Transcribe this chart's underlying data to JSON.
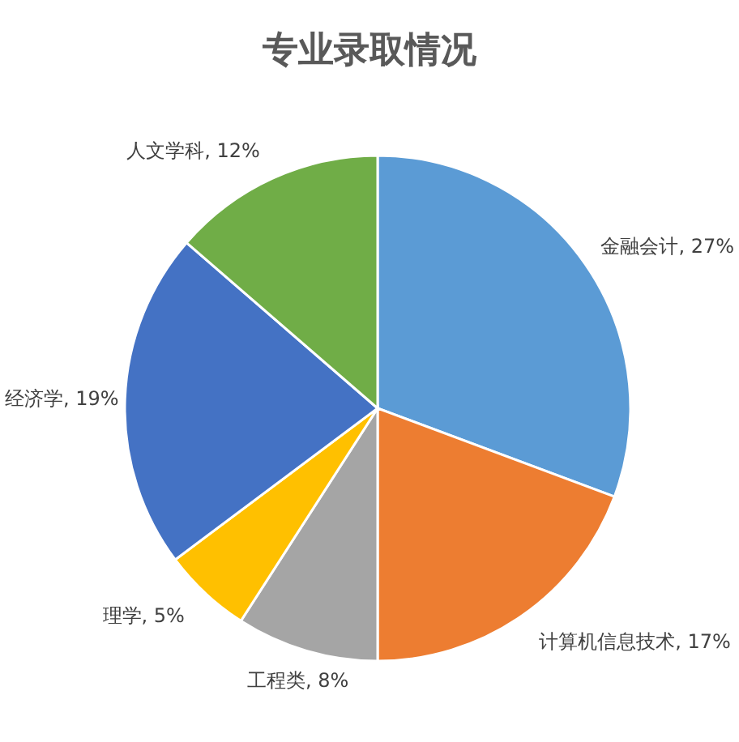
{
  "chart_data": {
    "type": "pie",
    "title": "专业录取情况",
    "categories": [
      "金融会计",
      "计算机信息技术",
      "工程类",
      "理学",
      "经济学",
      "人文学科"
    ],
    "values": [
      27,
      17,
      8,
      5,
      19,
      12
    ],
    "value_labels": [
      "27%",
      "17%",
      "8%",
      "5%",
      "19%",
      "12%"
    ],
    "colors": [
      "#5b9bd5",
      "#ed7d31",
      "#a5a5a5",
      "#ffc000",
      "#4472c4",
      "#70ad47"
    ],
    "legend": false
  }
}
